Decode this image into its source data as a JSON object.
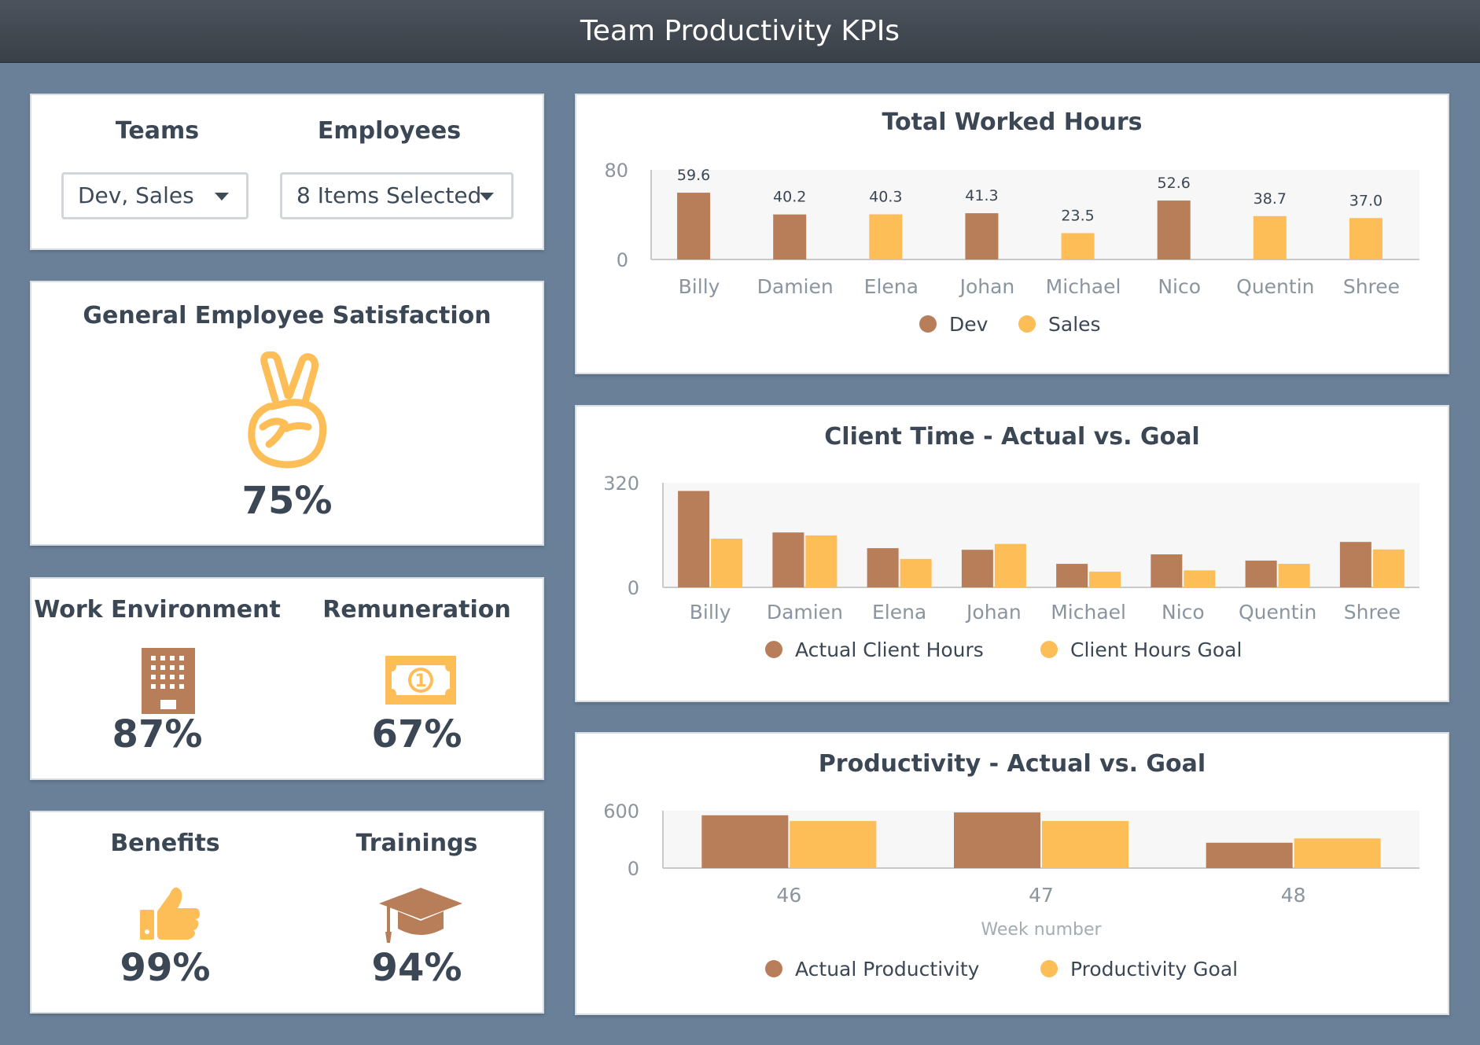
{
  "header": {
    "title": "Team Productivity KPIs"
  },
  "filters": {
    "teams_label": "Teams",
    "teams_value": "Dev, Sales",
    "employees_label": "Employees",
    "employees_value": "8 Items Selected"
  },
  "satisfaction": {
    "title": "General Employee Satisfaction",
    "icon": "peace-hand-icon",
    "value": "75%"
  },
  "kpis": {
    "work_environment": {
      "label": "Work Environment",
      "value": "87%",
      "icon": "building-icon"
    },
    "remuneration": {
      "label": "Remuneration",
      "value": "67%",
      "icon": "banknote-icon"
    },
    "benefits": {
      "label": "Benefits",
      "value": "99%",
      "icon": "thumbs-up-icon"
    },
    "trainings": {
      "label": "Trainings",
      "value": "94%",
      "icon": "graduation-cap-icon"
    }
  },
  "colors": {
    "dev": "#b87d59",
    "sales": "#fdbd57",
    "header": "#41474f",
    "background": "#6a8099"
  },
  "chart_data": [
    {
      "type": "bar",
      "title": "Total Worked Hours",
      "categories": [
        "Billy",
        "Damien",
        "Elena",
        "Johan",
        "Michael",
        "Nico",
        "Quentin",
        "Shree"
      ],
      "values": [
        59.6,
        40.2,
        40.3,
        41.3,
        23.5,
        52.6,
        38.7,
        37.0
      ],
      "value_labels": [
        "59.6",
        "40.2",
        "40.3",
        "41.3",
        "23.5",
        "52.6",
        "38.7",
        "37.0"
      ],
      "team": [
        "Dev",
        "Dev",
        "Sales",
        "Dev",
        "Sales",
        "Dev",
        "Sales",
        "Sales"
      ],
      "series": [
        {
          "name": "Dev",
          "color": "#b87d59"
        },
        {
          "name": "Sales",
          "color": "#fdbd57"
        }
      ],
      "ylim": [
        0,
        80
      ],
      "y_ticks": [
        "0",
        "80"
      ],
      "legend": "bottom-center"
    },
    {
      "type": "bar",
      "title": "Client Time - Actual vs. Goal",
      "categories": [
        "Billy",
        "Damien",
        "Elena",
        "Johan",
        "Michael",
        "Nico",
        "Quentin",
        "Shree"
      ],
      "series": [
        {
          "name": "Actual Client Hours",
          "color": "#b87d59",
          "values": [
            295,
            168,
            120,
            115,
            72,
            101,
            82,
            139
          ]
        },
        {
          "name": "Client Hours Goal",
          "color": "#fdbd57",
          "values": [
            149,
            159,
            87,
            133,
            48,
            52,
            72,
            116
          ]
        }
      ],
      "ylim": [
        0,
        320
      ],
      "y_ticks": [
        "0",
        "320"
      ],
      "legend": "bottom-center"
    },
    {
      "type": "bar",
      "title": "Productivity - Actual vs. Goal",
      "categories": [
        "46",
        "47",
        "48"
      ],
      "xlabel": "Week number",
      "series": [
        {
          "name": "Actual Productivity",
          "color": "#b87d59",
          "values": [
            552,
            582,
            265
          ]
        },
        {
          "name": "Productivity Goal",
          "color": "#fdbd57",
          "values": [
            492,
            492,
            310
          ]
        }
      ],
      "ylim": [
        0,
        600
      ],
      "y_ticks": [
        "0",
        "600"
      ],
      "legend": "bottom-center"
    }
  ]
}
